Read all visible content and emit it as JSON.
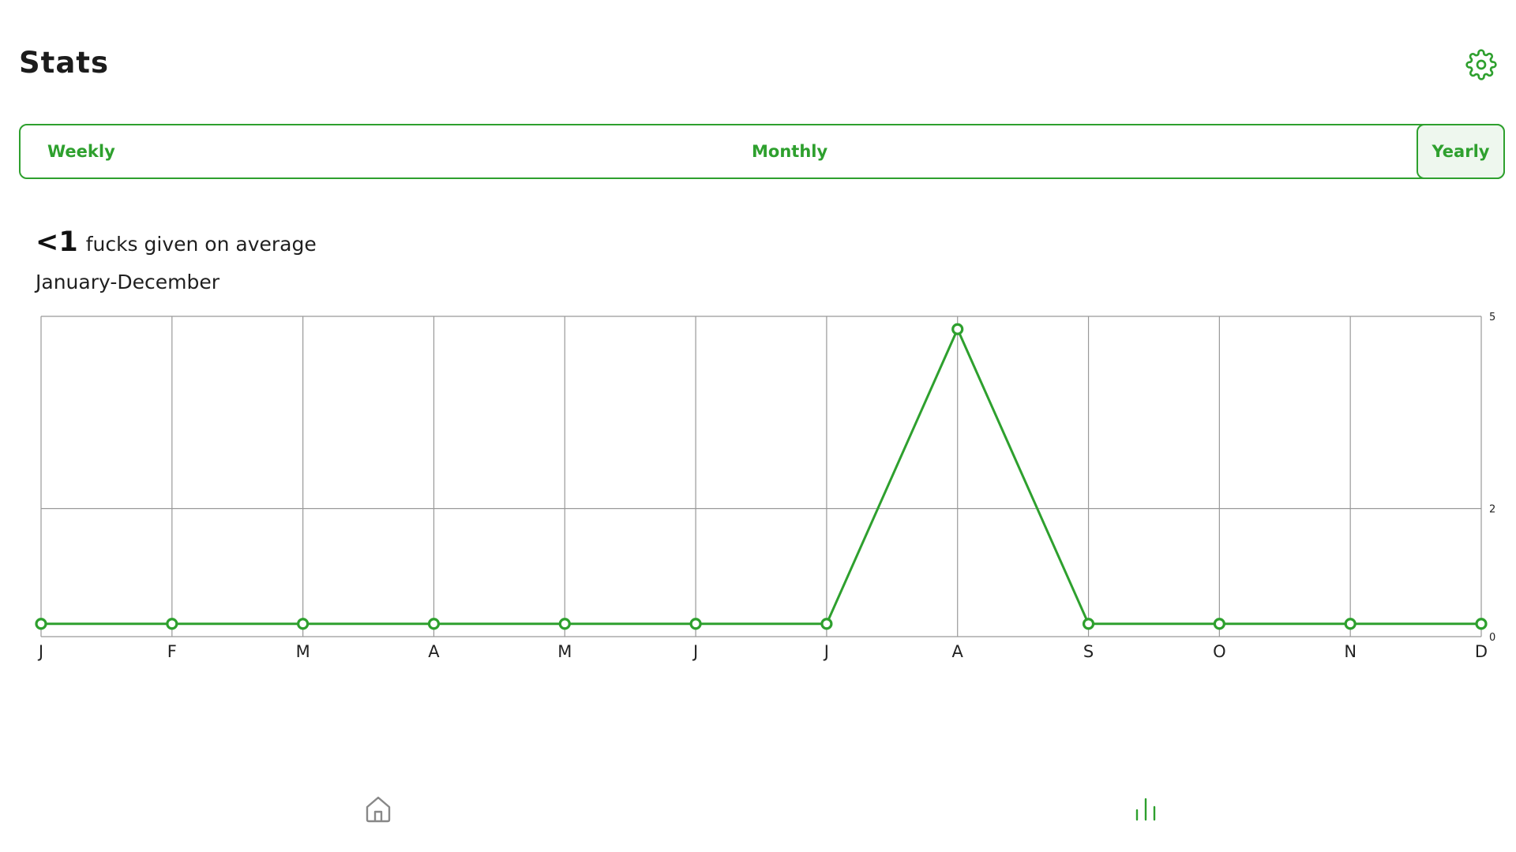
{
  "header": {
    "title": "Stats",
    "settings_icon": "gear-icon"
  },
  "tabs": [
    {
      "label": "Weekly",
      "active": false
    },
    {
      "label": "Monthly",
      "active": false
    },
    {
      "label": "Yearly",
      "active": true
    }
  ],
  "summary": {
    "value": "<1",
    "label": "fucks given on average",
    "period": "January-December"
  },
  "colors": {
    "accent": "#2ea02e",
    "grid": "#999999",
    "active_tab_bg": "#eef7ee"
  },
  "chart_data": {
    "type": "line",
    "categories": [
      "J",
      "F",
      "M",
      "A",
      "M",
      "J",
      "J",
      "A",
      "S",
      "O",
      "N",
      "D"
    ],
    "series": [
      {
        "values": [
          0.2,
          0.2,
          0.2,
          0.2,
          0.2,
          0.2,
          0.2,
          4.8,
          0.2,
          0.2,
          0.2,
          0.2
        ]
      }
    ],
    "ylim": [
      0,
      5
    ],
    "y_ticks": [
      0,
      2,
      5
    ],
    "y_axis_side": "right",
    "grid": true
  },
  "bottom_nav": {
    "items": [
      {
        "icon": "home-icon",
        "active": false
      },
      {
        "icon": "bar-chart-icon",
        "active": true
      }
    ]
  }
}
